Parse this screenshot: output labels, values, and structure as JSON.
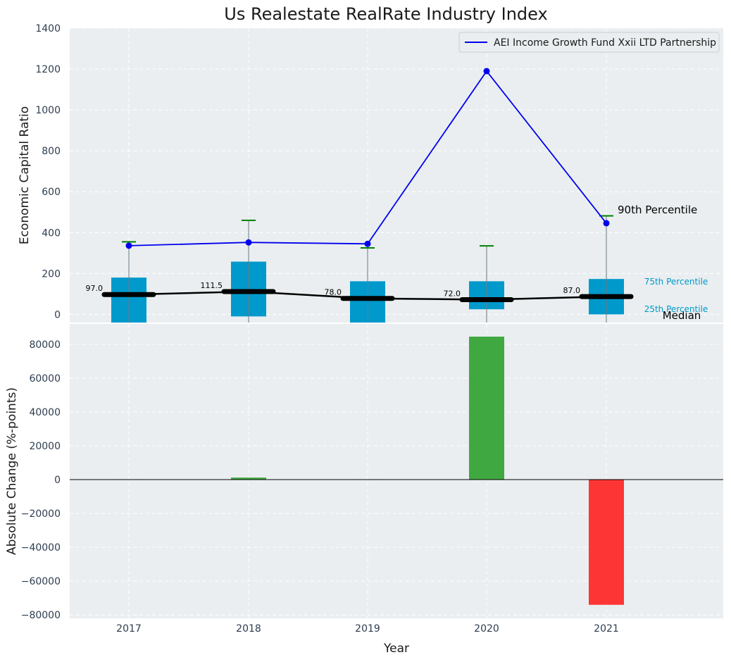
{
  "chart_data": {
    "title": "Us Realestate RealRate Industry Index",
    "xlabel": "Year",
    "categories": [
      "2017",
      "2018",
      "2019",
      "2020",
      "2021"
    ],
    "top_panel": {
      "type": "box+line",
      "ylabel": "Economic Capital Ratio",
      "ylim": [
        -40,
        1400
      ],
      "yticks": [
        0,
        200,
        400,
        600,
        800,
        1000,
        1200,
        1400
      ],
      "grid": true,
      "legend_position": "top-right",
      "boxes": [
        {
          "p25": -40,
          "median": 97.0,
          "p75": 180,
          "p90": 355,
          "median_label": "97.0"
        },
        {
          "p25": -10,
          "median": 111.5,
          "p75": 258,
          "p90": 460,
          "median_label": "111.5"
        },
        {
          "p25": -40,
          "median": 78.0,
          "p75": 162,
          "p90": 325,
          "median_label": "78.0"
        },
        {
          "p25": 25,
          "median": 72.0,
          "p75": 162,
          "p90": 335,
          "median_label": "72.0"
        },
        {
          "p25": 0,
          "median": 87.0,
          "p75": 173,
          "p90": 482,
          "median_label": "87.0"
        }
      ],
      "series": [
        {
          "name": "AEI Income Growth Fund Xxii LTD Partnership",
          "color": "#0000ee",
          "values": [
            336,
            352,
            345,
            1190,
            446
          ]
        }
      ],
      "annotations": {
        "p90": "90th Percentile",
        "p75": "75th Percentile",
        "median": "Median",
        "p25": "25th Percentile"
      }
    },
    "bottom_panel": {
      "type": "bar",
      "ylabel": "Absolute Change (%-points)",
      "ylim": [
        -82000,
        92000
      ],
      "yticks": [
        -80000,
        -60000,
        -40000,
        -20000,
        0,
        20000,
        40000,
        60000,
        80000
      ],
      "ytick_labels": [
        "−80000",
        "−60000",
        "−40000",
        "−20000",
        "0",
        "20000",
        "40000",
        "60000",
        "80000"
      ],
      "grid": true,
      "values": [
        0,
        1200,
        0,
        84500,
        -74000
      ],
      "positive_color": "#2ca02c",
      "negative_color": "#ff2020"
    },
    "colors": {
      "box": "#0099cc",
      "median_line": "#000000",
      "whisker_cap": "#008000",
      "background": "#eaeef0",
      "grid": "#ffffff"
    }
  }
}
